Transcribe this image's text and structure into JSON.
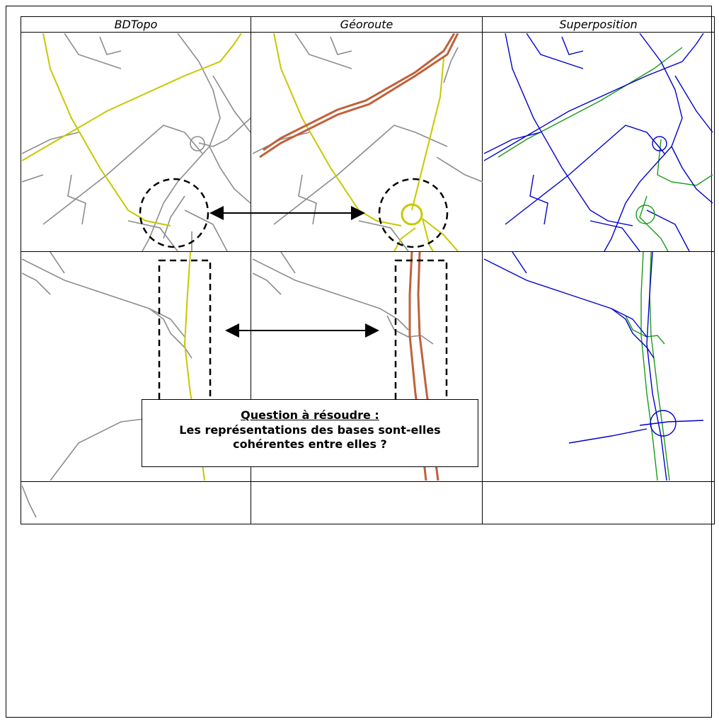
{
  "columns": [
    "BDTopo",
    "Géoroute",
    "Superposition"
  ],
  "question": {
    "title": "Question à résoudre :",
    "line1": "Les représentations des bases sont-elles",
    "line2": "cohérentes entre elles ?"
  },
  "colors": {
    "grey_road": "#8c8c8c",
    "yellow_road": "#c8c800",
    "red_road": "#c0603a",
    "bdtopo_overlay": "#0000cc",
    "georoute_overlay": "#1a9a1a",
    "frame": "#000000"
  }
}
